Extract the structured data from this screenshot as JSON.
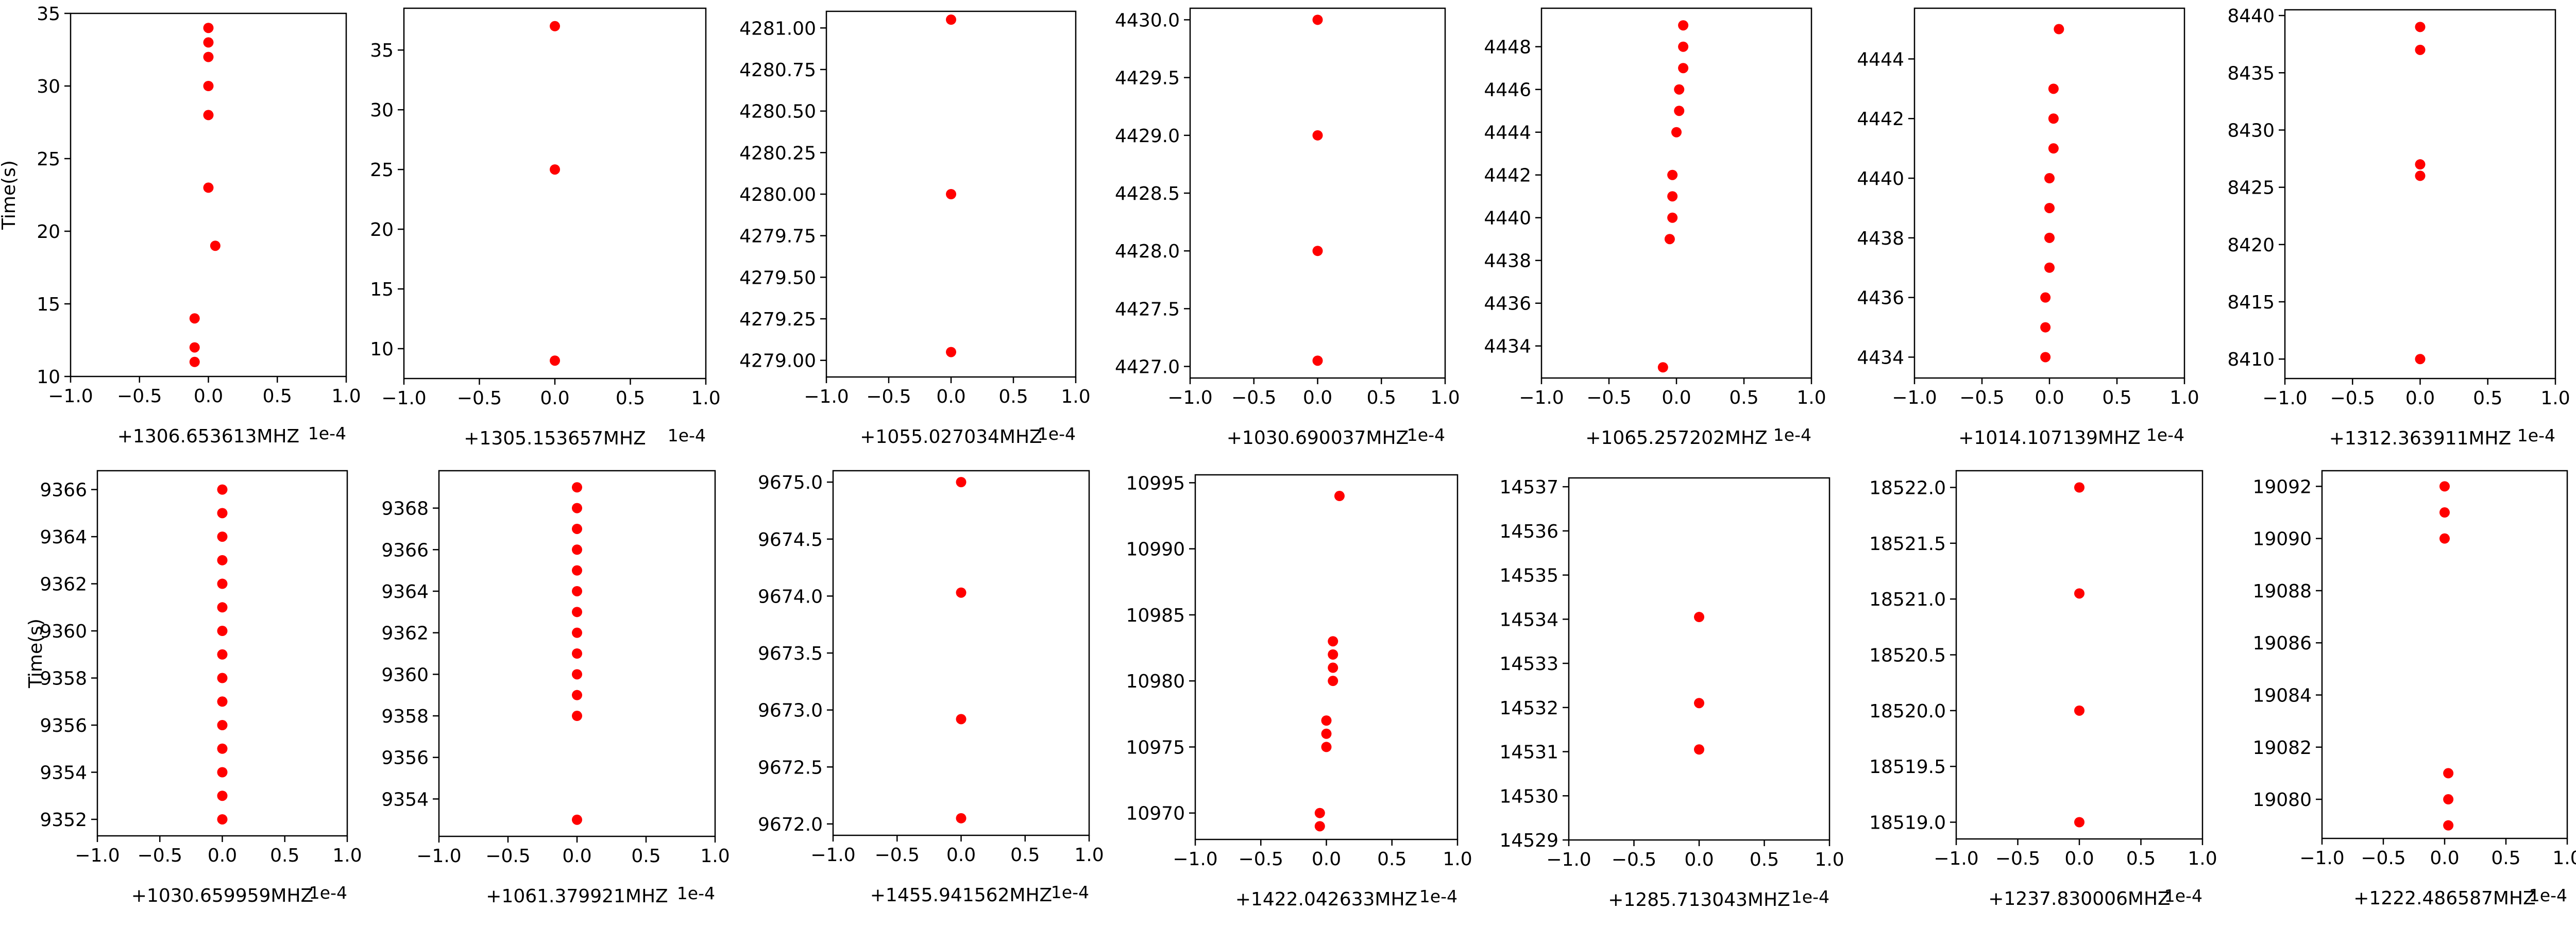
{
  "point_color": "#ff0000",
  "axis_color": "#000000",
  "chart_data": [
    {
      "type": "scatter",
      "xlabel": "+1306.653613MHZ",
      "ylabel": "Time(s)",
      "offset_text": "1e-4",
      "xlim": [
        -1.0,
        1.0
      ],
      "ylim": [
        10,
        35
      ],
      "x_ticks": [
        -1.0,
        -0.5,
        0.0,
        0.5,
        1.0
      ],
      "x_tick_labels": [
        "−1.0",
        "−0.5",
        "0.0",
        "0.5",
        "1.0"
      ],
      "y_ticks": [
        10,
        15,
        20,
        25,
        30,
        35
      ],
      "y_tick_labels": [
        "10",
        "15",
        "20",
        "25",
        "30",
        "35"
      ],
      "x": [
        0.0,
        0.0,
        0.0,
        0.0,
        0.0,
        0.0,
        0.05,
        -0.1,
        -0.1,
        -0.1
      ],
      "y": [
        34,
        33,
        32,
        30,
        28,
        23,
        19,
        14,
        12,
        11
      ]
    },
    {
      "type": "scatter",
      "xlabel": "+1305.153657MHZ",
      "ylabel": "",
      "offset_text": "1e-4",
      "xlim": [
        -1.0,
        1.0
      ],
      "ylim": [
        7.5,
        38.5
      ],
      "x_ticks": [
        -1.0,
        -0.5,
        0.0,
        0.5,
        1.0
      ],
      "x_tick_labels": [
        "−1.0",
        "−0.5",
        "0.0",
        "0.5",
        "1.0"
      ],
      "y_ticks": [
        10,
        15,
        20,
        25,
        30,
        35
      ],
      "y_tick_labels": [
        "10",
        "15",
        "20",
        "25",
        "30",
        "35"
      ],
      "x": [
        0.0,
        0.0,
        0.0
      ],
      "y": [
        37,
        25,
        9
      ]
    },
    {
      "type": "scatter",
      "xlabel": "+1055.027034MHZ",
      "ylabel": "",
      "offset_text": "1e-4",
      "xlim": [
        -1.0,
        1.0
      ],
      "ylim": [
        4278.9,
        4281.1
      ],
      "x_ticks": [
        -1.0,
        -0.5,
        0.0,
        0.5,
        1.0
      ],
      "x_tick_labels": [
        "−1.0",
        "−0.5",
        "0.0",
        "0.5",
        "1.0"
      ],
      "y_ticks": [
        4279.0,
        4279.25,
        4279.5,
        4279.75,
        4280.0,
        4280.25,
        4280.5,
        4280.75,
        4281.0
      ],
      "y_tick_labels": [
        "4279.00",
        "4279.25",
        "4279.50",
        "4279.75",
        "4280.00",
        "4280.25",
        "4280.50",
        "4280.75",
        "4281.00"
      ],
      "x": [
        0.0,
        0.0,
        0.0
      ],
      "y": [
        4281.05,
        4280.0,
        4279.05
      ]
    },
    {
      "type": "scatter",
      "xlabel": "+1030.690037MHZ",
      "ylabel": "",
      "offset_text": "1e-4",
      "xlim": [
        -1.0,
        1.0
      ],
      "ylim": [
        4426.9,
        4430.1
      ],
      "x_ticks": [
        -1.0,
        -0.5,
        0.0,
        0.5,
        1.0
      ],
      "x_tick_labels": [
        "−1.0",
        "−0.5",
        "0.0",
        "0.5",
        "1.0"
      ],
      "y_ticks": [
        4427.0,
        4427.5,
        4428.0,
        4428.5,
        4429.0,
        4429.5,
        4430.0
      ],
      "y_tick_labels": [
        "4427.0",
        "4427.5",
        "4428.0",
        "4428.5",
        "4429.0",
        "4429.5",
        "4430.0"
      ],
      "x": [
        0.0,
        0.0,
        0.0,
        0.0
      ],
      "y": [
        4430.0,
        4429.0,
        4428.0,
        4427.05
      ]
    },
    {
      "type": "scatter",
      "xlabel": "+1065.257202MHZ",
      "ylabel": "",
      "offset_text": "1e-4",
      "xlim": [
        -1.0,
        1.0
      ],
      "ylim": [
        4432.5,
        4449.8
      ],
      "x_ticks": [
        -1.0,
        -0.5,
        0.0,
        0.5,
        1.0
      ],
      "x_tick_labels": [
        "−1.0",
        "−0.5",
        "0.0",
        "0.5",
        "1.0"
      ],
      "y_ticks": [
        4434,
        4436,
        4438,
        4440,
        4442,
        4444,
        4446,
        4448
      ],
      "y_tick_labels": [
        "4434",
        "4436",
        "4438",
        "4440",
        "4442",
        "4444",
        "4446",
        "4448"
      ],
      "x": [
        0.05,
        0.05,
        0.05,
        0.02,
        0.02,
        0.0,
        -0.03,
        -0.03,
        -0.03,
        -0.05,
        -0.1
      ],
      "y": [
        4449,
        4448,
        4447,
        4446,
        4445,
        4444,
        4442,
        4441,
        4440,
        4439,
        4433
      ]
    },
    {
      "type": "scatter",
      "xlabel": "+1014.107139MHZ",
      "ylabel": "",
      "offset_text": "1e-4",
      "xlim": [
        -1.0,
        1.0
      ],
      "ylim": [
        4433.3,
        4445.7
      ],
      "x_ticks": [
        -1.0,
        -0.5,
        0.0,
        0.5,
        1.0
      ],
      "x_tick_labels": [
        "−1.0",
        "−0.5",
        "0.0",
        "0.5",
        "1.0"
      ],
      "y_ticks": [
        4434,
        4436,
        4438,
        4440,
        4442,
        4444
      ],
      "y_tick_labels": [
        "4434",
        "4436",
        "4438",
        "4440",
        "4442",
        "4444"
      ],
      "x": [
        0.07,
        0.03,
        0.03,
        0.03,
        0.0,
        0.0,
        0.0,
        0.0,
        -0.03,
        -0.03,
        -0.03
      ],
      "y": [
        4445,
        4443,
        4442,
        4441,
        4440,
        4439,
        4438,
        4437,
        4436,
        4435,
        4434
      ]
    },
    {
      "type": "scatter",
      "xlabel": "+1312.363911MHZ",
      "ylabel": "",
      "offset_text": "1e-4",
      "xlim": [
        -1.0,
        1.0
      ],
      "ylim": [
        8408.3,
        8440.5
      ],
      "x_ticks": [
        -1.0,
        -0.5,
        0.0,
        0.5,
        1.0
      ],
      "x_tick_labels": [
        "−1.0",
        "−0.5",
        "0.0",
        "0.5",
        "1.0"
      ],
      "y_ticks": [
        8410,
        8415,
        8420,
        8425,
        8430,
        8435,
        8440
      ],
      "y_tick_labels": [
        "8410",
        "8415",
        "8420",
        "8425",
        "8430",
        "8435",
        "8440"
      ],
      "x": [
        0.0,
        0.0,
        0.0,
        0.0,
        0.0
      ],
      "y": [
        8439,
        8437,
        8427,
        8426,
        8410
      ]
    },
    {
      "type": "scatter",
      "xlabel": "+1030.659959MHZ",
      "ylabel": "Time(s)",
      "offset_text": "1e-4",
      "xlim": [
        -1.0,
        1.0
      ],
      "ylim": [
        9351.3,
        9366.8
      ],
      "x_ticks": [
        -1.0,
        -0.5,
        0.0,
        0.5,
        1.0
      ],
      "x_tick_labels": [
        "−1.0",
        "−0.5",
        "0.0",
        "0.5",
        "1.0"
      ],
      "y_ticks": [
        9352,
        9354,
        9356,
        9358,
        9360,
        9362,
        9364,
        9366
      ],
      "y_tick_labels": [
        "9352",
        "9354",
        "9356",
        "9358",
        "9360",
        "9362",
        "9364",
        "9366"
      ],
      "x": [
        0.0,
        0.0,
        0.0,
        0.0,
        0.0,
        0.0,
        0.0,
        0.0,
        0.0,
        0.0,
        0.0,
        0.0,
        0.0,
        0.0,
        0.0
      ],
      "y": [
        9366,
        9365,
        9364,
        9363,
        9362,
        9361,
        9360,
        9359,
        9358,
        9357,
        9356,
        9355,
        9354,
        9353,
        9352
      ]
    },
    {
      "type": "scatter",
      "xlabel": "+1061.379921MHZ",
      "ylabel": "",
      "offset_text": "1e-4",
      "xlim": [
        -1.0,
        1.0
      ],
      "ylim": [
        9352.2,
        9369.8
      ],
      "x_ticks": [
        -1.0,
        -0.5,
        0.0,
        0.5,
        1.0
      ],
      "x_tick_labels": [
        "−1.0",
        "−0.5",
        "0.0",
        "0.5",
        "1.0"
      ],
      "y_ticks": [
        9354,
        9356,
        9358,
        9360,
        9362,
        9364,
        9366,
        9368
      ],
      "y_tick_labels": [
        "9354",
        "9356",
        "9358",
        "9360",
        "9362",
        "9364",
        "9366",
        "9368"
      ],
      "x": [
        0.0,
        0.0,
        0.0,
        0.0,
        0.0,
        0.0,
        0.0,
        0.0,
        0.0,
        0.0,
        0.0,
        0.0,
        0.0
      ],
      "y": [
        9369,
        9368,
        9367,
        9366,
        9365,
        9364,
        9363,
        9362,
        9361,
        9360,
        9359,
        9358,
        9353
      ]
    },
    {
      "type": "scatter",
      "xlabel": "+1455.941562MHZ",
      "ylabel": "",
      "offset_text": "1e-4",
      "xlim": [
        -1.0,
        1.0
      ],
      "ylim": [
        9671.9,
        9675.1
      ],
      "x_ticks": [
        -1.0,
        -0.5,
        0.0,
        0.5,
        1.0
      ],
      "x_tick_labels": [
        "−1.0",
        "−0.5",
        "0.0",
        "0.5",
        "1.0"
      ],
      "y_ticks": [
        9672.0,
        9672.5,
        9673.0,
        9673.5,
        9674.0,
        9674.5,
        9675.0
      ],
      "y_tick_labels": [
        "9672.0",
        "9672.5",
        "9673.0",
        "9673.5",
        "9674.0",
        "9674.5",
        "9675.0"
      ],
      "x": [
        0.0,
        0.0,
        0.0,
        0.0
      ],
      "y": [
        9675.0,
        9674.03,
        9672.92,
        9672.05
      ]
    },
    {
      "type": "scatter",
      "xlabel": "+1422.042633MHZ",
      "ylabel": "",
      "offset_text": "1e-4",
      "xlim": [
        -1.0,
        1.0
      ],
      "ylim": [
        10968.0,
        10995.6
      ],
      "x_ticks": [
        -1.0,
        -0.5,
        0.0,
        0.5,
        1.0
      ],
      "x_tick_labels": [
        "−1.0",
        "−0.5",
        "0.0",
        "0.5",
        "1.0"
      ],
      "y_ticks": [
        10970,
        10975,
        10980,
        10985,
        10990,
        10995
      ],
      "y_tick_labels": [
        "10970",
        "10975",
        "10980",
        "10985",
        "10990",
        "10995"
      ],
      "x": [
        0.1,
        0.05,
        0.05,
        0.05,
        0.05,
        0.0,
        0.0,
        0.0,
        -0.05,
        -0.05
      ],
      "y": [
        10994,
        10983,
        10982,
        10981,
        10980,
        10977,
        10976,
        10975,
        10970,
        10969
      ]
    },
    {
      "type": "scatter",
      "xlabel": "+1285.713043MHZ",
      "ylabel": "",
      "offset_text": "1e-4",
      "xlim": [
        -1.0,
        1.0
      ],
      "ylim": [
        14529.0,
        14537.2
      ],
      "x_ticks": [
        -1.0,
        -0.5,
        0.0,
        0.5,
        1.0
      ],
      "x_tick_labels": [
        "−1.0",
        "−0.5",
        "0.0",
        "0.5",
        "1.0"
      ],
      "y_ticks": [
        14529,
        14530,
        14531,
        14532,
        14533,
        14534,
        14535,
        14536,
        14537
      ],
      "y_tick_labels": [
        "14529",
        "14530",
        "14531",
        "14532",
        "14533",
        "14534",
        "14535",
        "14536",
        "14537"
      ],
      "x": [
        0.0,
        0.0,
        0.0
      ],
      "y": [
        14534.05,
        14532.1,
        14531.05
      ]
    },
    {
      "type": "scatter",
      "xlabel": "+1237.830006MHZ",
      "ylabel": "",
      "offset_text": "1e-4",
      "xlim": [
        -1.0,
        1.0
      ],
      "ylim": [
        18518.85,
        18522.15
      ],
      "x_ticks": [
        -1.0,
        -0.5,
        0.0,
        0.5,
        1.0
      ],
      "x_tick_labels": [
        "−1.0",
        "−0.5",
        "0.0",
        "0.5",
        "1.0"
      ],
      "y_ticks": [
        18519.0,
        18519.5,
        18520.0,
        18520.5,
        18521.0,
        18521.5,
        18522.0
      ],
      "y_tick_labels": [
        "18519.0",
        "18519.5",
        "18520.0",
        "18520.5",
        "18521.0",
        "18521.5",
        "18522.0"
      ],
      "x": [
        0.0,
        0.0,
        0.0,
        0.0
      ],
      "y": [
        18522.0,
        18521.05,
        18520.0,
        18519.0
      ]
    },
    {
      "type": "scatter",
      "xlabel": "+1222.486587MHZ",
      "ylabel": "",
      "offset_text": "1e-4",
      "xlim": [
        -1.0,
        1.0
      ],
      "ylim": [
        19078.5,
        19092.6
      ],
      "x_ticks": [
        -1.0,
        -0.5,
        0.0,
        0.5,
        1.0
      ],
      "x_tick_labels": [
        "−1.0",
        "−0.5",
        "0.0",
        "0.5",
        "1.0"
      ],
      "y_ticks": [
        19080,
        19082,
        19084,
        19086,
        19088,
        19090,
        19092
      ],
      "y_tick_labels": [
        "19080",
        "19082",
        "19084",
        "19086",
        "19088",
        "19090",
        "19092"
      ],
      "x": [
        0.0,
        0.0,
        0.0,
        0.03,
        0.03,
        0.03
      ],
      "y": [
        19092,
        19091,
        19090,
        19081,
        19080,
        19079
      ]
    }
  ]
}
